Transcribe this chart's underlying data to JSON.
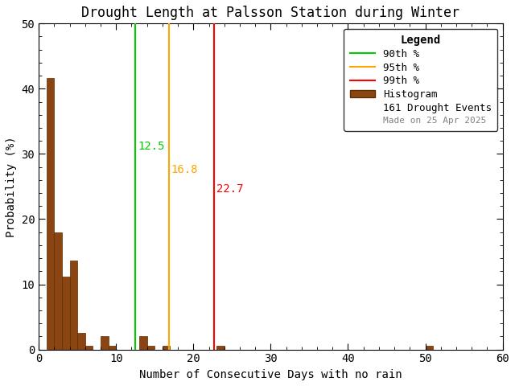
{
  "title": "Drought Length at Palsson Station during Winter",
  "xlabel": "Number of Consecutive Days with no rain",
  "ylabel": "Probability (%)",
  "xlim": [
    0,
    60
  ],
  "ylim": [
    0,
    50
  ],
  "bar_color": "#8B4513",
  "bar_edgecolor": "#5C2E00",
  "background_color": "#ffffff",
  "bin_width": 1,
  "bar_heights": {
    "1": 41.6,
    "2": 18.0,
    "3": 11.2,
    "4": 13.7,
    "5": 2.5,
    "6": 0.6,
    "7": 0.0,
    "8": 2.0,
    "9": 0.6,
    "10": 0.0,
    "11": 0.0,
    "12": 0.0,
    "13": 2.0,
    "14": 0.6,
    "15": 0.0,
    "16": 0.6,
    "17": 0.0,
    "18": 0.0,
    "19": 0.0,
    "20": 0.0,
    "21": 0.0,
    "22": 0.0,
    "23": 0.6,
    "24": 0.0,
    "25": 0.0,
    "26": 0.0,
    "27": 0.0,
    "28": 0.0,
    "29": 0.0,
    "30": 0.0,
    "31": 0.0,
    "32": 0.0,
    "33": 0.0,
    "34": 0.0,
    "35": 0.0,
    "36": 0.0,
    "37": 0.0,
    "38": 0.0,
    "39": 0.0,
    "40": 0.0,
    "41": 0.0,
    "42": 0.0,
    "43": 0.0,
    "44": 0.0,
    "45": 0.0,
    "46": 0.0,
    "47": 0.0,
    "48": 0.0,
    "49": 0.0,
    "50": 0.6
  },
  "percentile_90": 12.5,
  "percentile_95": 16.8,
  "percentile_99": 22.7,
  "percentile_90_color": "#00CC00",
  "percentile_95_color": "#FFA500",
  "percentile_99_color": "#FF0000",
  "n_events": 161,
  "date_label": "Made on 25 Apr 2025",
  "legend_title": "Legend",
  "xticks": [
    0,
    10,
    20,
    30,
    40,
    50,
    60
  ],
  "yticks": [
    0,
    10,
    20,
    30,
    40,
    50
  ],
  "title_fontsize": 12,
  "axis_fontsize": 10,
  "tick_fontsize": 10,
  "annotation_fontsize": 10
}
